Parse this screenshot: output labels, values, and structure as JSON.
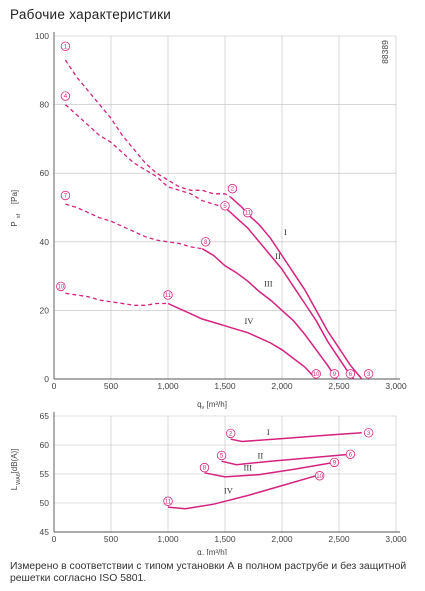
{
  "page": {
    "title": "Рабочие характеристики",
    "code": "88389",
    "footnote": "Измерено в соответствии с типом установки А в полном раструбе и без защитной решетки согласно ISO 5801."
  },
  "colors": {
    "curve": "#d4237f",
    "grid": "#bfbfbf",
    "axis": "#555555"
  },
  "chart_data": [
    {
      "type": "line",
      "xlabel": "qv [m³/h]",
      "ylabel": "Psf [Pa]",
      "xlim": [
        0,
        3000
      ],
      "ylim": [
        0,
        100
      ],
      "xticks": [
        "0",
        "500",
        "1,000",
        "1,500",
        "2,000",
        "2,500",
        "3,000"
      ],
      "yticks": [
        "0",
        "20",
        "40",
        "60",
        "80",
        "100"
      ],
      "grid": true,
      "series": [
        {
          "name": "I",
          "dashed": [
            [
              100,
              93
            ],
            [
              200,
              88
            ],
            [
              300,
              84
            ],
            [
              400,
              80
            ],
            [
              500,
              76
            ],
            [
              600,
              71
            ],
            [
              700,
              67
            ],
            [
              800,
              63
            ],
            [
              900,
              60
            ],
            [
              1000,
              58
            ],
            [
              1100,
              56
            ],
            [
              1200,
              55
            ],
            [
              1300,
              55
            ],
            [
              1400,
              54
            ],
            [
              1500,
              54
            ],
            [
              1550,
              53
            ]
          ],
          "solid": [
            [
              1550,
              53
            ],
            [
              1650,
              50
            ],
            [
              1700,
              48
            ],
            [
              1800,
              45
            ],
            [
              1900,
              41
            ],
            [
              2000,
              36
            ],
            [
              2100,
              31
            ],
            [
              2200,
              26
            ],
            [
              2300,
              20
            ],
            [
              2400,
              14
            ],
            [
              2500,
              9
            ],
            [
              2600,
              4
            ],
            [
              2700,
              0
            ]
          ]
        },
        {
          "name": "II",
          "dashed": [
            [
              100,
              80
            ],
            [
              200,
              77
            ],
            [
              300,
              74
            ],
            [
              400,
              71
            ],
            [
              500,
              69
            ],
            [
              600,
              66
            ],
            [
              700,
              63
            ],
            [
              800,
              61
            ],
            [
              900,
              59
            ],
            [
              1000,
              56
            ],
            [
              1100,
              55
            ],
            [
              1200,
              54
            ],
            [
              1300,
              52
            ],
            [
              1400,
              51
            ],
            [
              1500,
              50
            ]
          ],
          "solid": [
            [
              1500,
              50
            ],
            [
              1600,
              47
            ],
            [
              1700,
              44
            ],
            [
              1800,
              40
            ],
            [
              1900,
              36
            ],
            [
              2000,
              32
            ],
            [
              2100,
              27
            ],
            [
              2200,
              22
            ],
            [
              2300,
              17
            ],
            [
              2400,
              11
            ],
            [
              2500,
              6
            ],
            [
              2580,
              2
            ],
            [
              2630,
              0
            ]
          ]
        },
        {
          "name": "III",
          "dashed": [
            [
              100,
              51
            ],
            [
              200,
              50
            ],
            [
              300,
              48.5
            ],
            [
              400,
              47
            ],
            [
              500,
              46
            ],
            [
              600,
              44.5
            ],
            [
              700,
              43
            ],
            [
              800,
              41.5
            ],
            [
              900,
              40.5
            ],
            [
              1000,
              40
            ],
            [
              1100,
              39.5
            ],
            [
              1200,
              38.5
            ],
            [
              1300,
              38
            ]
          ],
          "solid": [
            [
              1300,
              38
            ],
            [
              1400,
              36
            ],
            [
              1500,
              33
            ],
            [
              1600,
              31
            ],
            [
              1700,
              28.5
            ],
            [
              1800,
              25.5
            ],
            [
              1900,
              23
            ],
            [
              2000,
              20
            ],
            [
              2100,
              17
            ],
            [
              2200,
              13
            ],
            [
              2300,
              8.5
            ],
            [
              2400,
              4
            ],
            [
              2450,
              1.5
            ],
            [
              2480,
              0
            ]
          ]
        },
        {
          "name": "IV",
          "dashed": [
            [
              100,
              25
            ],
            [
              200,
              24.5
            ],
            [
              300,
              24
            ],
            [
              400,
              23
            ],
            [
              500,
              22.5
            ],
            [
              600,
              22
            ],
            [
              700,
              21.5
            ],
            [
              800,
              21.5
            ],
            [
              900,
              22
            ],
            [
              1000,
              22
            ]
          ],
          "solid": [
            [
              1000,
              22
            ],
            [
              1100,
              20.5
            ],
            [
              1200,
              19
            ],
            [
              1300,
              17.5
            ],
            [
              1400,
              16.5
            ],
            [
              1500,
              15.5
            ],
            [
              1600,
              14.5
            ],
            [
              1700,
              13.5
            ],
            [
              1800,
              12
            ],
            [
              1900,
              10.5
            ],
            [
              2000,
              8.5
            ],
            [
              2100,
              6
            ],
            [
              2200,
              3.5
            ],
            [
              2270,
              1
            ],
            [
              2300,
              0
            ]
          ]
        }
      ],
      "markers": [
        {
          "label": "1",
          "x": 100,
          "y": 97
        },
        {
          "label": "4",
          "x": 100,
          "y": 82.5
        },
        {
          "label": "7",
          "x": 100,
          "y": 53.5
        },
        {
          "label": "10",
          "x": 60,
          "y": 27
        },
        {
          "label": "2",
          "x": 1565,
          "y": 55.5
        },
        {
          "label": "5",
          "x": 1500,
          "y": 50.5
        },
        {
          "label": "8",
          "x": 1330,
          "y": 40
        },
        {
          "label": "11",
          "x": 1000,
          "y": 24.5
        },
        {
          "label": "3",
          "x": 2760,
          "y": 1.5
        },
        {
          "label": "6",
          "x": 2600,
          "y": 1.5
        },
        {
          "label": "9",
          "x": 2460,
          "y": 1.5
        },
        {
          "label": "10",
          "x": 2300,
          "y": 1.5
        },
        {
          "label": "11",
          "x": 1700,
          "y": 48.5
        }
      ],
      "curve_labels": [
        {
          "label": "I",
          "x": 2030,
          "y": 42
        },
        {
          "label": "II",
          "x": 1965,
          "y": 35
        },
        {
          "label": "III",
          "x": 1880,
          "y": 27
        },
        {
          "label": "IV",
          "x": 1710,
          "y": 16
        }
      ]
    },
    {
      "type": "line",
      "xlabel": "qv [m³/h]",
      "ylabel": "LwA6 [dB(A)]",
      "xlim": [
        0,
        3000
      ],
      "ylim": [
        45,
        65
      ],
      "xticks": [
        "0",
        "500",
        "1,000",
        "1,500",
        "2,000",
        "2,500",
        "3,000"
      ],
      "yticks": [
        "45",
        "50",
        "55",
        "60",
        "65"
      ],
      "grid": true,
      "series": [
        {
          "name": "I",
          "points": [
            [
              1550,
              61
            ],
            [
              1650,
              60.6
            ],
            [
              2000,
              61.1
            ],
            [
              2400,
              61.7
            ],
            [
              2700,
              62.1
            ]
          ]
        },
        {
          "name": "II",
          "points": [
            [
              1470,
              57.2
            ],
            [
              1600,
              56.6
            ],
            [
              1900,
              57.2
            ],
            [
              2300,
              57.9
            ],
            [
              2600,
              58.4
            ]
          ]
        },
        {
          "name": "III",
          "points": [
            [
              1320,
              55.2
            ],
            [
              1500,
              54.5
            ],
            [
              1800,
              54.9
            ],
            [
              2100,
              55.8
            ],
            [
              2460,
              57.0
            ]
          ]
        },
        {
          "name": "IV",
          "points": [
            [
              1000,
              49.3
            ],
            [
              1150,
              49.0
            ],
            [
              1400,
              49.8
            ],
            [
              1700,
              51.3
            ],
            [
              2000,
              53.0
            ],
            [
              2300,
              54.7
            ]
          ]
        }
      ],
      "markers": [
        {
          "label": "2",
          "x": 1550,
          "y": 62
        },
        {
          "label": "3",
          "x": 2760,
          "y": 62.1
        },
        {
          "label": "5",
          "x": 1470,
          "y": 58.2
        },
        {
          "label": "6",
          "x": 2600,
          "y": 58.4
        },
        {
          "label": "8",
          "x": 1320,
          "y": 56.1
        },
        {
          "label": "9",
          "x": 2460,
          "y": 57
        },
        {
          "label": "11",
          "x": 1000,
          "y": 50.3
        },
        {
          "label": "10",
          "x": 2330,
          "y": 54.7
        }
      ],
      "curve_labels": [
        {
          "label": "I",
          "x": 1880,
          "y": 61.7
        },
        {
          "label": "II",
          "x": 1810,
          "y": 57.7
        },
        {
          "label": "III",
          "x": 1700,
          "y": 55.6
        },
        {
          "label": "IV",
          "x": 1530,
          "y": 51.6
        }
      ]
    }
  ]
}
